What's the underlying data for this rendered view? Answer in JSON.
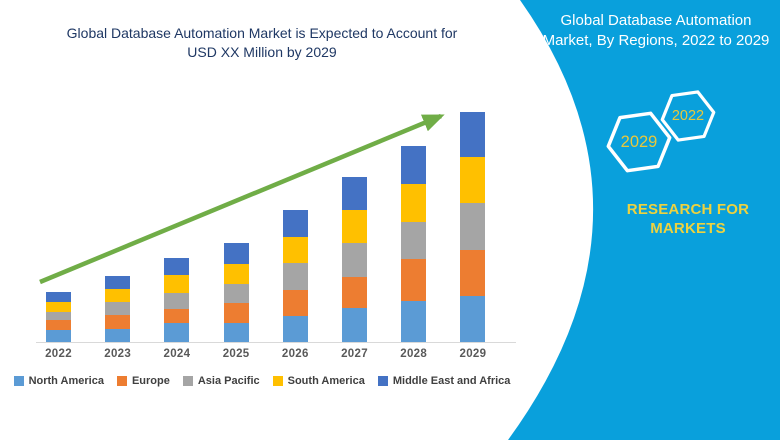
{
  "chart": {
    "title": "Global Database Automation Market is Expected to Account for USD XX Million by 2029"
  },
  "chart_data": {
    "type": "bar",
    "stacked": true,
    "title": "Global Database Automation Market is Expected to Account for USD XX Million by 2029",
    "categories": [
      "2022",
      "2023",
      "2024",
      "2025",
      "2026",
      "2027",
      "2028",
      "2029"
    ],
    "series": [
      {
        "name": "North America",
        "color": "#5B9BD5",
        "values": [
          12,
          13,
          19,
          19,
          26,
          34,
          41,
          46
        ]
      },
      {
        "name": "Europe",
        "color": "#ED7D31",
        "values": [
          10,
          14,
          14,
          20,
          26,
          31,
          42,
          46
        ]
      },
      {
        "name": "Asia Pacific",
        "color": "#A5A5A5",
        "values": [
          8,
          13,
          16,
          19,
          27,
          34,
          37,
          47
        ]
      },
      {
        "name": "South America",
        "color": "#FFC000",
        "values": [
          10,
          13,
          18,
          20,
          26,
          33,
          38,
          46
        ]
      },
      {
        "name": "Middle East and Africa",
        "color": "#4472C4",
        "values": [
          10,
          13,
          17,
          21,
          27,
          33,
          38,
          45
        ]
      }
    ],
    "totals": [
      50,
      66,
      84,
      99,
      132,
      165,
      196,
      230
    ],
    "units": "USD Million (amounts masked as XX in title)",
    "value_axis_visible": false,
    "grid": false,
    "legend_position": "bottom",
    "trend_arrow": {
      "color": "#70AD47",
      "direction": "up-right"
    }
  },
  "panel": {
    "background_color": "#09A0DC",
    "title": "Global Database Automation Market, By Regions, 2022 to 2029",
    "hexagons": [
      {
        "year": "2029"
      },
      {
        "year": "2022"
      }
    ],
    "brand": "RESEARCH FOR MARKETS"
  },
  "colors": {
    "chart_title_text": "#1F3864",
    "axis_label_text": "#595959",
    "legend_text": "#404040",
    "axis_line": "#D9D9D9",
    "hex_year_text": "#E8C83C",
    "brand_text": "#EDD23F"
  }
}
